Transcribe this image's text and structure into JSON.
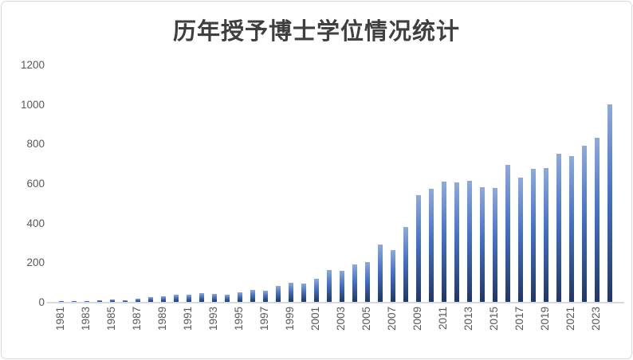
{
  "chart_data": {
    "type": "bar",
    "title": "历年授予博士学位情况统计",
    "xlabel": "",
    "ylabel": "",
    "categories": [
      1981,
      1982,
      1983,
      1984,
      1985,
      1986,
      1987,
      1988,
      1989,
      1990,
      1991,
      1992,
      1993,
      1994,
      1995,
      1996,
      1997,
      1998,
      1999,
      2000,
      2001,
      2002,
      2003,
      2004,
      2005,
      2006,
      2007,
      2008,
      2009,
      2010,
      2011,
      2012,
      2013,
      2014,
      2015,
      2016,
      2017,
      2018,
      2019,
      2020,
      2021,
      2022,
      2023,
      2024
    ],
    "values": [
      1,
      2,
      4,
      8,
      12,
      8,
      18,
      24,
      30,
      36,
      36,
      45,
      40,
      37,
      50,
      62,
      55,
      82,
      97,
      93,
      118,
      160,
      157,
      190,
      200,
      290,
      260,
      380,
      540,
      573,
      607,
      606,
      611,
      580,
      575,
      692,
      630,
      673,
      678,
      750,
      738,
      790,
      828,
      1000
    ],
    "x_tick_labels": [
      "1981",
      "1983",
      "1985",
      "1987",
      "1989",
      "1991",
      "1993",
      "1995",
      "1997",
      "1999",
      "2001",
      "2003",
      "2005",
      "2007",
      "2009",
      "2011",
      "2013",
      "2015",
      "2017",
      "2019",
      "2021",
      "2023"
    ],
    "y_ticks": [
      0,
      200,
      400,
      600,
      800,
      1000,
      1200
    ],
    "ylim": [
      0,
      1200
    ],
    "grid": false,
    "legend": false,
    "x_tick_rotation_deg": 90,
    "colors": {
      "bar_gradient_top": "#8faadc",
      "bar_gradient_mid": "#4472c4",
      "bar_gradient_bottom": "#1f3864",
      "axis_line": "#d9d9d9",
      "tick_label": "#595959",
      "title": "#3f3f3f",
      "background": "#ffffff",
      "border": "#d9d9d9"
    }
  }
}
